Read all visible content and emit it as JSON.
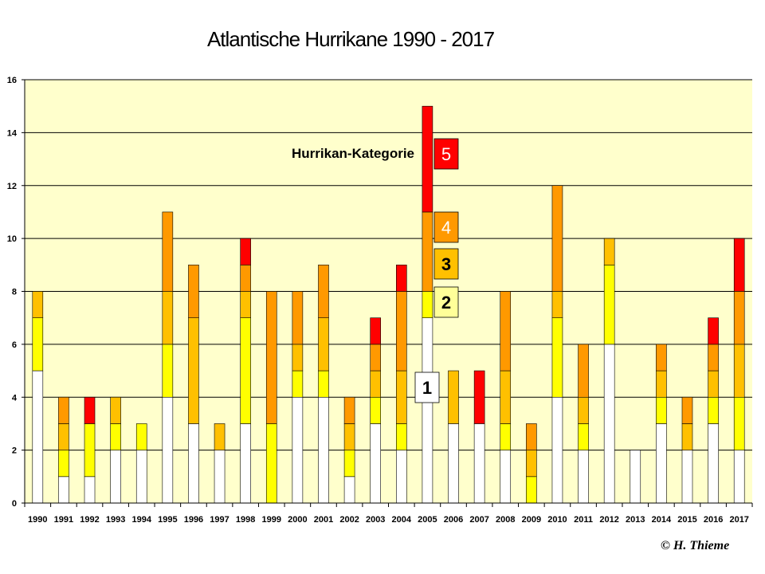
{
  "title": "Atlantische Hurrikane 1990 - 2017",
  "credit": "© H. Thieme",
  "legend": {
    "title": "Hurrikan-Kategorie",
    "items": [
      {
        "label": "5",
        "color": "#ff0000",
        "text_color": "#ffffff"
      },
      {
        "label": "4",
        "color": "#ff9900",
        "text_color": "#ffffff"
      },
      {
        "label": "3",
        "color": "#ffc000",
        "text_color": "#000000"
      },
      {
        "label": "2",
        "color": "#ffff99",
        "text_color": "#000000"
      },
      {
        "label": "1",
        "color": "#ffffff",
        "text_color": "#000000"
      }
    ]
  },
  "chart_data": {
    "type": "bar",
    "stacked": true,
    "title": "Atlantische Hurrikane 1990 - 2017",
    "xlabel": "",
    "ylabel": "",
    "ylim": [
      0,
      16
    ],
    "yticks": [
      0,
      2,
      4,
      6,
      8,
      10,
      12,
      14,
      16
    ],
    "grid": true,
    "plot_background": "#ffffcc",
    "categories": [
      "1990",
      "1991",
      "1992",
      "1993",
      "1994",
      "1995",
      "1996",
      "1997",
      "1998",
      "1999",
      "2000",
      "2001",
      "2002",
      "2003",
      "2004",
      "2005",
      "2006",
      "2007",
      "2008",
      "2009",
      "2010",
      "2011",
      "2012",
      "2013",
      "2014",
      "2015",
      "2016",
      "2017"
    ],
    "series": [
      {
        "name": "1",
        "color": "#ffffff",
        "values": [
          5,
          1,
          1,
          2,
          2,
          4,
          3,
          2,
          3,
          0,
          4,
          4,
          1,
          3,
          2,
          7,
          3,
          3,
          2,
          0,
          4,
          2,
          6,
          2,
          3,
          2,
          3,
          2
        ]
      },
      {
        "name": "2",
        "color": "#ffff00",
        "values": [
          2,
          1,
          2,
          1,
          1,
          2,
          0,
          0,
          4,
          3,
          1,
          1,
          1,
          1,
          1,
          1,
          0,
          0,
          1,
          1,
          3,
          1,
          3,
          0,
          1,
          0,
          1,
          2
        ]
      },
      {
        "name": "3",
        "color": "#ffc000",
        "values": [
          1,
          1,
          0,
          1,
          0,
          2,
          4,
          1,
          1,
          0,
          1,
          2,
          1,
          1,
          2,
          0,
          2,
          0,
          2,
          1,
          1,
          1,
          1,
          0,
          1,
          1,
          1,
          2
        ]
      },
      {
        "name": "4",
        "color": "#ff9900",
        "values": [
          0,
          1,
          0,
          0,
          0,
          3,
          2,
          0,
          1,
          5,
          2,
          2,
          1,
          1,
          3,
          3,
          0,
          0,
          3,
          1,
          4,
          2,
          0,
          0,
          1,
          1,
          1,
          2
        ]
      },
      {
        "name": "5",
        "color": "#ff0000",
        "values": [
          0,
          0,
          1,
          0,
          0,
          0,
          0,
          0,
          1,
          0,
          0,
          0,
          0,
          1,
          1,
          4,
          0,
          2,
          0,
          0,
          0,
          0,
          0,
          0,
          0,
          0,
          1,
          2
        ]
      }
    ]
  }
}
